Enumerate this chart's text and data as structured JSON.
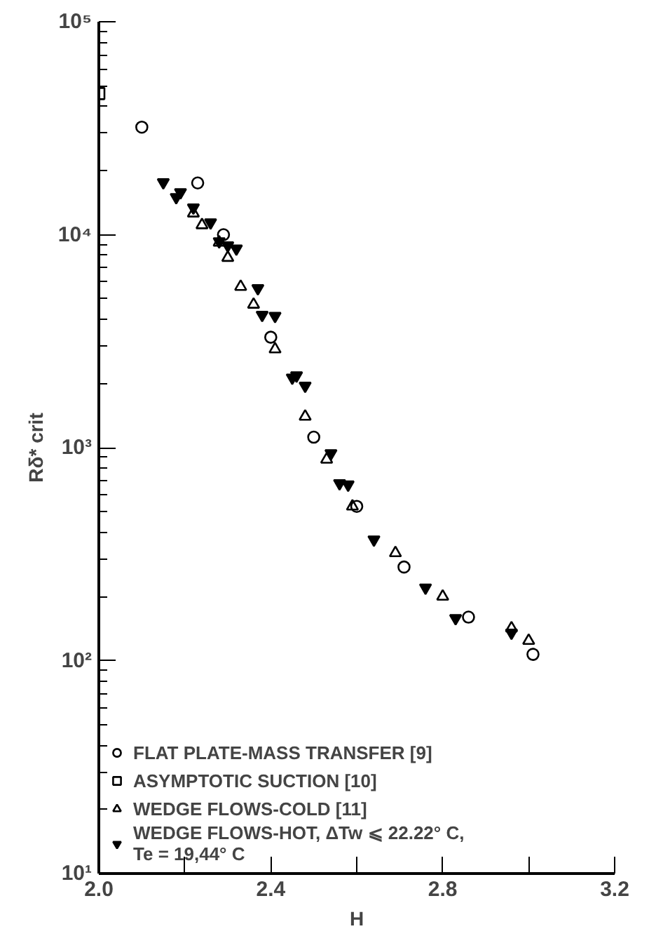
{
  "chart_data": {
    "type": "scatter",
    "xlabel": "H",
    "ylabel": "Rδ* crit",
    "log": "y",
    "grid": false,
    "legend": "bottom left",
    "xlim": [
      2.0,
      3.2
    ],
    "xticks": [
      {
        "value": 2.0,
        "label": "2.0"
      },
      {
        "value": 2.2,
        "label": null
      },
      {
        "value": 2.4,
        "label": "2.4"
      },
      {
        "value": 2.6,
        "label": null
      },
      {
        "value": 2.8,
        "label": "2.8"
      },
      {
        "value": 3.0,
        "label": null
      },
      {
        "value": 3.2,
        "label": "3.2"
      }
    ],
    "ylim": [
      10,
      100000
    ],
    "yticks": [
      {
        "value": 10,
        "label": "10¹"
      },
      {
        "value": 100,
        "label": "10²"
      },
      {
        "value": 1000,
        "label": "10³"
      },
      {
        "value": 10000,
        "label": "10⁴"
      },
      {
        "value": 100000,
        "label": "10⁵"
      }
    ],
    "series": [
      {
        "name": "FLAT PLATE-MASS TRANSFER [9]",
        "color": "#000000",
        "marker": "circle",
        "x": [
          2.1,
          2.23,
          2.29,
          2.4,
          2.5,
          2.6,
          2.71,
          2.86,
          3.01
        ],
        "values": [
          32000,
          17500,
          10000,
          3300,
          1120,
          530,
          275,
          160,
          107
        ]
      },
      {
        "name": "ASYMPTOTIC SUCTION [10]",
        "color": "#000000",
        "marker": "square",
        "x": [
          2.0
        ],
        "values": [
          46000
        ]
      },
      {
        "name": "WEDGE FLOWS-COLD [11]",
        "color": "#000000",
        "marker": "triangle",
        "x": [
          2.22,
          2.24,
          2.28,
          2.3,
          2.33,
          2.36,
          2.41,
          2.48,
          2.53,
          2.59,
          2.69,
          2.8,
          2.96,
          3.0
        ],
        "values": [
          12600,
          11100,
          9200,
          7800,
          5700,
          4700,
          2900,
          1400,
          880,
          530,
          320,
          200,
          142,
          124
        ]
      },
      {
        "name": "WEDGE FLOWS-HOT, ΔTw ⩽ 22.22° C,\nTe = 19,44° C",
        "color": "#000000",
        "marker": "triangle",
        "x": [
          2.15,
          2.19,
          2.18,
          2.22,
          2.26,
          2.28,
          2.3,
          2.32,
          2.37,
          2.38,
          2.41,
          2.45,
          2.46,
          2.48,
          2.54,
          2.56,
          2.58,
          2.64,
          2.76,
          2.83,
          2.96
        ],
        "values": [
          17600,
          15800,
          15000,
          13400,
          11400,
          9300,
          8900,
          8600,
          5600,
          4200,
          4150,
          2130,
          2180,
          1950,
          940,
          680,
          670,
          370,
          220,
          158,
          135
        ]
      }
    ]
  }
}
